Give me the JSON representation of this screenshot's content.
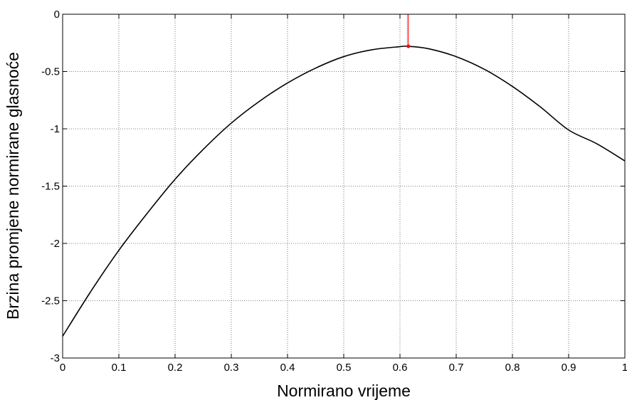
{
  "chart_data": {
    "type": "line",
    "title": "",
    "xlabel": "Normirano vrijeme",
    "ylabel": "Brzina promjene normirane glasnoće",
    "xlim": [
      0,
      1
    ],
    "ylim": [
      -3,
      0
    ],
    "xticks": [
      "0",
      "0.1",
      "0.2",
      "0.3",
      "0.4",
      "0.5",
      "0.6",
      "0.7",
      "0.8",
      "0.9",
      "1"
    ],
    "yticks": [
      "0",
      "-0.5",
      "-1",
      "-1.5",
      "-2",
      "-2.5",
      "-3"
    ],
    "grid": true,
    "series": [
      {
        "color": "#000000",
        "x": [
          0,
          0.05,
          0.1,
          0.15,
          0.2,
          0.25,
          0.3,
          0.35,
          0.4,
          0.45,
          0.5,
          0.55,
          0.6,
          0.615,
          0.65,
          0.7,
          0.75,
          0.8,
          0.85,
          0.9,
          0.95,
          1.0
        ],
        "y": [
          -2.81,
          -2.42,
          -2.06,
          -1.74,
          -1.44,
          -1.18,
          -0.95,
          -0.76,
          -0.6,
          -0.47,
          -0.37,
          -0.31,
          -0.283,
          -0.28,
          -0.3,
          -0.37,
          -0.48,
          -0.63,
          -0.81,
          -1.01,
          -1.13,
          -1.28
        ]
      }
    ],
    "annotations": [
      {
        "type": "vertical-line",
        "x": 0.615,
        "y_from": 0,
        "y_to": -0.28,
        "color": "#ff0000"
      },
      {
        "type": "vertical-line",
        "x": 0.613,
        "y_from": 0,
        "y_to": -0.28,
        "color": "#9aa6c8"
      },
      {
        "type": "marker",
        "x": 0.615,
        "y": -0.28,
        "color": "#ff0000"
      }
    ]
  }
}
